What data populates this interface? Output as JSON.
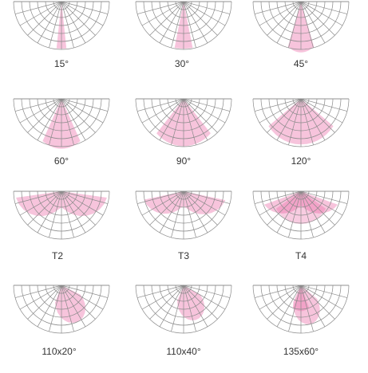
{
  "colors": {
    "grid": "#8a8a8a",
    "beam": "#e8559a",
    "label": "#333333",
    "background": "#ffffff"
  },
  "diagrams": [
    {
      "label": "15°"
    },
    {
      "label": "30°"
    },
    {
      "label": "45°"
    },
    {
      "label": "60°"
    },
    {
      "label": "90°"
    },
    {
      "label": "120°"
    },
    {
      "label": "T2"
    },
    {
      "label": "T3"
    },
    {
      "label": "T4"
    },
    {
      "label": "110x20°"
    },
    {
      "label": "110x40°"
    },
    {
      "label": "135x60°"
    }
  ]
}
